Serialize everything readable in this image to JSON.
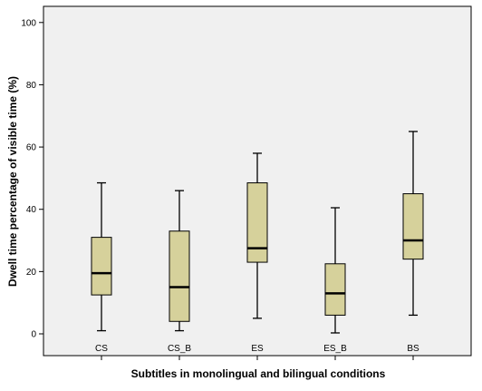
{
  "chart_data": {
    "type": "boxplot",
    "title": "",
    "xlabel": "Subtitles in monolingual and bilingual conditions",
    "ylabel": "Dwell time percentage of visible time (%)",
    "ylim": [
      0,
      105
    ],
    "yticks": [
      0,
      20,
      40,
      60,
      80,
      100
    ],
    "grid": false,
    "categories": [
      "CS",
      "CS_B",
      "ES",
      "ES_B",
      "BS"
    ],
    "boxes": [
      {
        "category": "CS",
        "whisker_low": 1,
        "q1": 12.5,
        "median": 19.5,
        "q3": 31,
        "whisker_high": 48.5
      },
      {
        "category": "CS_B",
        "whisker_low": 1,
        "q1": 4,
        "median": 15,
        "q3": 33,
        "whisker_high": 46
      },
      {
        "category": "ES",
        "whisker_low": 5,
        "q1": 23,
        "median": 27.5,
        "q3": 48.5,
        "whisker_high": 58
      },
      {
        "category": "ES_B",
        "whisker_low": 0.3,
        "q1": 6,
        "median": 13,
        "q3": 22.5,
        "whisker_high": 40.5
      },
      {
        "category": "BS",
        "whisker_low": 6,
        "q1": 24,
        "median": 30,
        "q3": 45,
        "whisker_high": 65
      }
    ],
    "colors": {
      "plot_background": "#f0f0f0",
      "box_fill": "#d6d19b",
      "line": "#000000"
    }
  }
}
